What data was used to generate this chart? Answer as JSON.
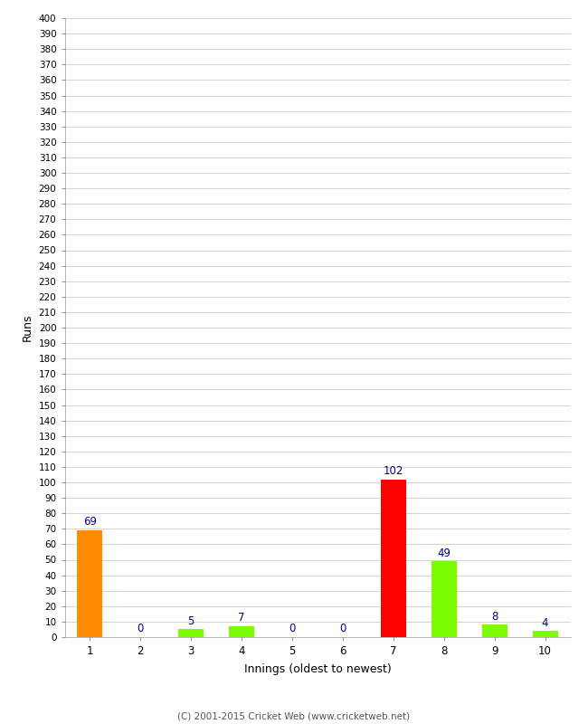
{
  "categories": [
    "1",
    "2",
    "3",
    "4",
    "5",
    "6",
    "7",
    "8",
    "9",
    "10"
  ],
  "values": [
    69,
    0,
    5,
    7,
    0,
    0,
    102,
    49,
    8,
    4
  ],
  "bar_colors": [
    "#FF8C00",
    "#7CFC00",
    "#7CFC00",
    "#7CFC00",
    "#7CFC00",
    "#7CFC00",
    "#FF0000",
    "#7CFC00",
    "#7CFC00",
    "#7CFC00"
  ],
  "xlabel": "Innings (oldest to newest)",
  "ylabel": "Runs",
  "ylim": [
    0,
    400
  ],
  "ytick_step": 10,
  "background_color": "#ffffff",
  "footer": "(C) 2001-2015 Cricket Web (www.cricketweb.net)",
  "label_color": "#00008B",
  "grid_color": "#cccccc"
}
